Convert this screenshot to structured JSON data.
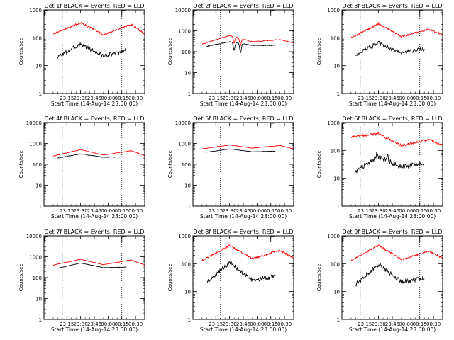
{
  "chart_data": [
    {
      "type": "line",
      "title": "Det 1f BLACK = Events, RED = LLD",
      "xlabel": "Start Time (14-Aug-14 23:00:00)",
      "ylabel": "Counts/sec",
      "yscale": "log",
      "ylim": [
        1,
        1000
      ],
      "x_ticks": [
        "23:15",
        "23:30",
        "23:45",
        "00:00",
        "00:15",
        "00:30"
      ],
      "y_ticks": [
        "1",
        "10",
        "100",
        "1000"
      ],
      "markers": [
        "23:10",
        "00:15"
      ],
      "top_marker": "00:15",
      "series": [
        {
          "name": "Events",
          "color": "#000000",
          "x_range": [
            "23:05",
            "00:20"
          ],
          "start": 20,
          "peak": 60,
          "mid": 22,
          "peak2": 50,
          "end": 35,
          "noise": 0.18
        },
        {
          "name": "LLD",
          "color": "#ff0000",
          "x_range": [
            "23:00",
            "00:40"
          ],
          "start": 140,
          "peak": 350,
          "mid": 130,
          "peak2": 300,
          "end": 140,
          "noise": 0.07
        }
      ]
    },
    {
      "type": "line",
      "title": "Det 2f BLACK = Events, RED = LLD",
      "xlabel": "Start Time (14-Aug-14 23:00:00)",
      "ylabel": "Counts/sec",
      "yscale": "log",
      "ylim": [
        1,
        10000
      ],
      "x_ticks": [
        "23:15",
        "23:30",
        "23:45",
        "00:00",
        "00:15",
        "00:30"
      ],
      "y_ticks": [
        "1",
        "10",
        "100",
        "1000",
        "10000"
      ],
      "markers": [
        "23:20",
        "00:35"
      ],
      "top_marker": "00:15",
      "series": [
        {
          "name": "Events",
          "color": "#000000",
          "x_range": [
            "23:05",
            "00:20"
          ],
          "start": 180,
          "peak": 300,
          "mid": 200,
          "peak2": 240,
          "end": 200,
          "noise": 0.04,
          "dips": [
            [
              "23:35",
              120
            ],
            [
              "23:42",
              90
            ]
          ]
        },
        {
          "name": "LLD",
          "color": "#ff0000",
          "x_range": [
            "23:00",
            "00:40"
          ],
          "start": 230,
          "peak": 600,
          "mid": 300,
          "peak2": 380,
          "end": 260,
          "noise": 0.04,
          "dips": [
            [
              "23:35",
              250
            ],
            [
              "23:42",
              200
            ]
          ]
        }
      ]
    },
    {
      "type": "line",
      "title": "Det 3f BLACK = Events, RED = LLD",
      "xlabel": "Start Time (14-Aug-14 23:00:00)",
      "ylabel": "Counts/sec",
      "yscale": "log",
      "ylim": [
        1,
        1000
      ],
      "x_ticks": [
        "23:15",
        "23:30",
        "23:45",
        "00:00",
        "00:15",
        "00:30"
      ],
      "y_ticks": [
        "1",
        "10",
        "100",
        "1000"
      ],
      "markers": [
        "23:10",
        "00:15"
      ],
      "top_marker": "00:15",
      "series": [
        {
          "name": "Events",
          "color": "#000000",
          "x_range": [
            "23:05",
            "00:20"
          ],
          "start": 25,
          "peak": 65,
          "mid": 28,
          "peak2": 55,
          "end": 40,
          "noise": 0.16
        },
        {
          "name": "LLD",
          "color": "#ff0000",
          "x_range": [
            "23:00",
            "00:40"
          ],
          "start": 100,
          "peak": 320,
          "mid": 110,
          "peak2": 200,
          "end": 130,
          "noise": 0.07
        }
      ]
    },
    {
      "type": "line",
      "title": "Det 4f BLACK = Events, RED = LLD",
      "xlabel": "Start Time (14-Aug-14 23:00:00)",
      "ylabel": "Counts/sec",
      "yscale": "log",
      "ylim": [
        1,
        10000
      ],
      "x_ticks": [
        "23:15",
        "23:30",
        "23:45",
        "00:00",
        "00:15",
        "00:30"
      ],
      "y_ticks": [
        "1",
        "10",
        "100",
        "1000",
        "10000"
      ],
      "markers": [
        "23:10",
        "00:15"
      ],
      "top_marker": "00:15",
      "series": [
        {
          "name": "Events",
          "color": "#000000",
          "x_range": [
            "23:05",
            "00:20"
          ],
          "start": 200,
          "peak": 320,
          "mid": 220,
          "peak2": 280,
          "end": 230,
          "noise": 0.03
        },
        {
          "name": "LLD",
          "color": "#ff0000",
          "x_range": [
            "23:00",
            "00:40"
          ],
          "start": 250,
          "peak": 500,
          "mid": 280,
          "peak2": 450,
          "end": 260,
          "noise": 0.03
        }
      ]
    },
    {
      "type": "line",
      "title": "Det 5f BLACK = Events, RED = LLD",
      "xlabel": "Start Time (14-Aug-14 23:00:00)",
      "ylabel": "Counts/sec",
      "yscale": "log",
      "ylim": [
        1,
        10000
      ],
      "x_ticks": [
        "23:15",
        "23:30",
        "23:45",
        "00:00",
        "00:15",
        "00:30"
      ],
      "y_ticks": [
        "1",
        "10",
        "100",
        "1000",
        "10000"
      ],
      "markers": [
        "23:20",
        "00:35"
      ],
      "top_marker": "00:15",
      "series": [
        {
          "name": "Events",
          "color": "#000000",
          "x_range": [
            "23:05",
            "00:20"
          ],
          "start": 380,
          "peak": 550,
          "mid": 400,
          "peak2": 520,
          "end": 430,
          "noise": 0.02
        },
        {
          "name": "LLD",
          "color": "#ff0000",
          "x_range": [
            "23:00",
            "00:40"
          ],
          "start": 550,
          "peak": 850,
          "mid": 600,
          "peak2": 800,
          "end": 550,
          "noise": 0.02
        }
      ]
    },
    {
      "type": "line",
      "title": "Det 6f BLACK = Events, RED = LLD",
      "xlabel": "Start Time (14-Aug-14 23:00:00)",
      "ylabel": "Counts/sec",
      "yscale": "log",
      "ylim": [
        1,
        1000
      ],
      "x_ticks": [
        "23:15",
        "23:30",
        "23:45",
        "00:00",
        "00:15",
        "00:30"
      ],
      "y_ticks": [
        "1",
        "10",
        "100",
        "1000"
      ],
      "markers": [
        "23:10",
        "00:15"
      ],
      "top_marker": "00:15",
      "series": [
        {
          "name": "Events",
          "color": "#000000",
          "x_range": [
            "23:05",
            "00:20"
          ],
          "start": 18,
          "peak": 60,
          "mid": 25,
          "peak2": 40,
          "end": 35,
          "noise": 0.2,
          "spikes": [
            [
              "23:28",
              85
            ],
            [
              "23:40",
              80
            ]
          ]
        },
        {
          "name": "LLD",
          "color": "#ff0000",
          "x_range": [
            "23:00",
            "00:40"
          ],
          "start": 300,
          "peak": 400,
          "mid": 150,
          "peak2": 250,
          "end": 150,
          "noise": 0.09
        }
      ]
    },
    {
      "type": "line",
      "title": "Det 7f BLACK = Events, RED = LLD",
      "xlabel": "Start Time (14-Aug-14 23:00:00)",
      "ylabel": "Counts/sec",
      "yscale": "log",
      "ylim": [
        1,
        10000
      ],
      "x_ticks": [
        "23:15",
        "23:30",
        "23:45",
        "00:00",
        "00:15",
        "00:30"
      ],
      "y_ticks": [
        "1",
        "10",
        "100",
        "1000",
        "10000"
      ],
      "markers": [
        "23:10",
        "00:15"
      ],
      "top_marker": "00:15",
      "series": [
        {
          "name": "Events",
          "color": "#000000",
          "x_range": [
            "23:05",
            "00:20"
          ],
          "start": 280,
          "peak": 500,
          "mid": 300,
          "peak2": 450,
          "end": 320,
          "noise": 0.02
        },
        {
          "name": "LLD",
          "color": "#ff0000",
          "x_range": [
            "23:00",
            "00:40"
          ],
          "start": 400,
          "peak": 750,
          "mid": 420,
          "peak2": 700,
          "end": 400,
          "noise": 0.02
        }
      ]
    },
    {
      "type": "line",
      "title": "Det 8f BLACK = Events, RED = LLD",
      "xlabel": "Start Time (14-Aug-14 23:00:00)",
      "ylabel": "Counts/sec",
      "yscale": "log",
      "ylim": [
        1,
        1000
      ],
      "x_ticks": [
        "23:15",
        "23:30",
        "23:45",
        "00:00",
        "00:15",
        "00:30"
      ],
      "y_ticks": [
        "1",
        "10",
        "100",
        "1000"
      ],
      "markers": [
        "23:20",
        "00:35"
      ],
      "top_marker": "00:15",
      "series": [
        {
          "name": "Events",
          "color": "#000000",
          "x_range": [
            "23:05",
            "00:20"
          ],
          "start": 22,
          "peak": 110,
          "mid": 25,
          "peak2": 55,
          "end": 35,
          "noise": 0.18
        },
        {
          "name": "LLD",
          "color": "#ff0000",
          "x_range": [
            "23:00",
            "00:40"
          ],
          "start": 130,
          "peak": 450,
          "mid": 150,
          "peak2": 300,
          "end": 160,
          "noise": 0.07
        }
      ]
    },
    {
      "type": "line",
      "title": "Det 9f BLACK = Events, RED = LLD",
      "xlabel": "Start Time (14-Aug-14 23:00:00)",
      "ylabel": "Counts/sec",
      "yscale": "log",
      "ylim": [
        1,
        1000
      ],
      "x_ticks": [
        "23:15",
        "23:30",
        "23:45",
        "00:00",
        "00:15",
        "00:30"
      ],
      "y_ticks": [
        "1",
        "10",
        "100",
        "1000"
      ],
      "markers": [
        "23:10",
        "00:15"
      ],
      "top_marker": "00:15",
      "series": [
        {
          "name": "Events",
          "color": "#000000",
          "x_range": [
            "23:05",
            "00:20"
          ],
          "start": 18,
          "peak": 95,
          "mid": 22,
          "peak2": 45,
          "end": 30,
          "noise": 0.18
        },
        {
          "name": "LLD",
          "color": "#ff0000",
          "x_range": [
            "23:00",
            "00:40"
          ],
          "start": 130,
          "peak": 450,
          "mid": 140,
          "peak2": 280,
          "end": 160,
          "noise": 0.07
        }
      ]
    }
  ]
}
